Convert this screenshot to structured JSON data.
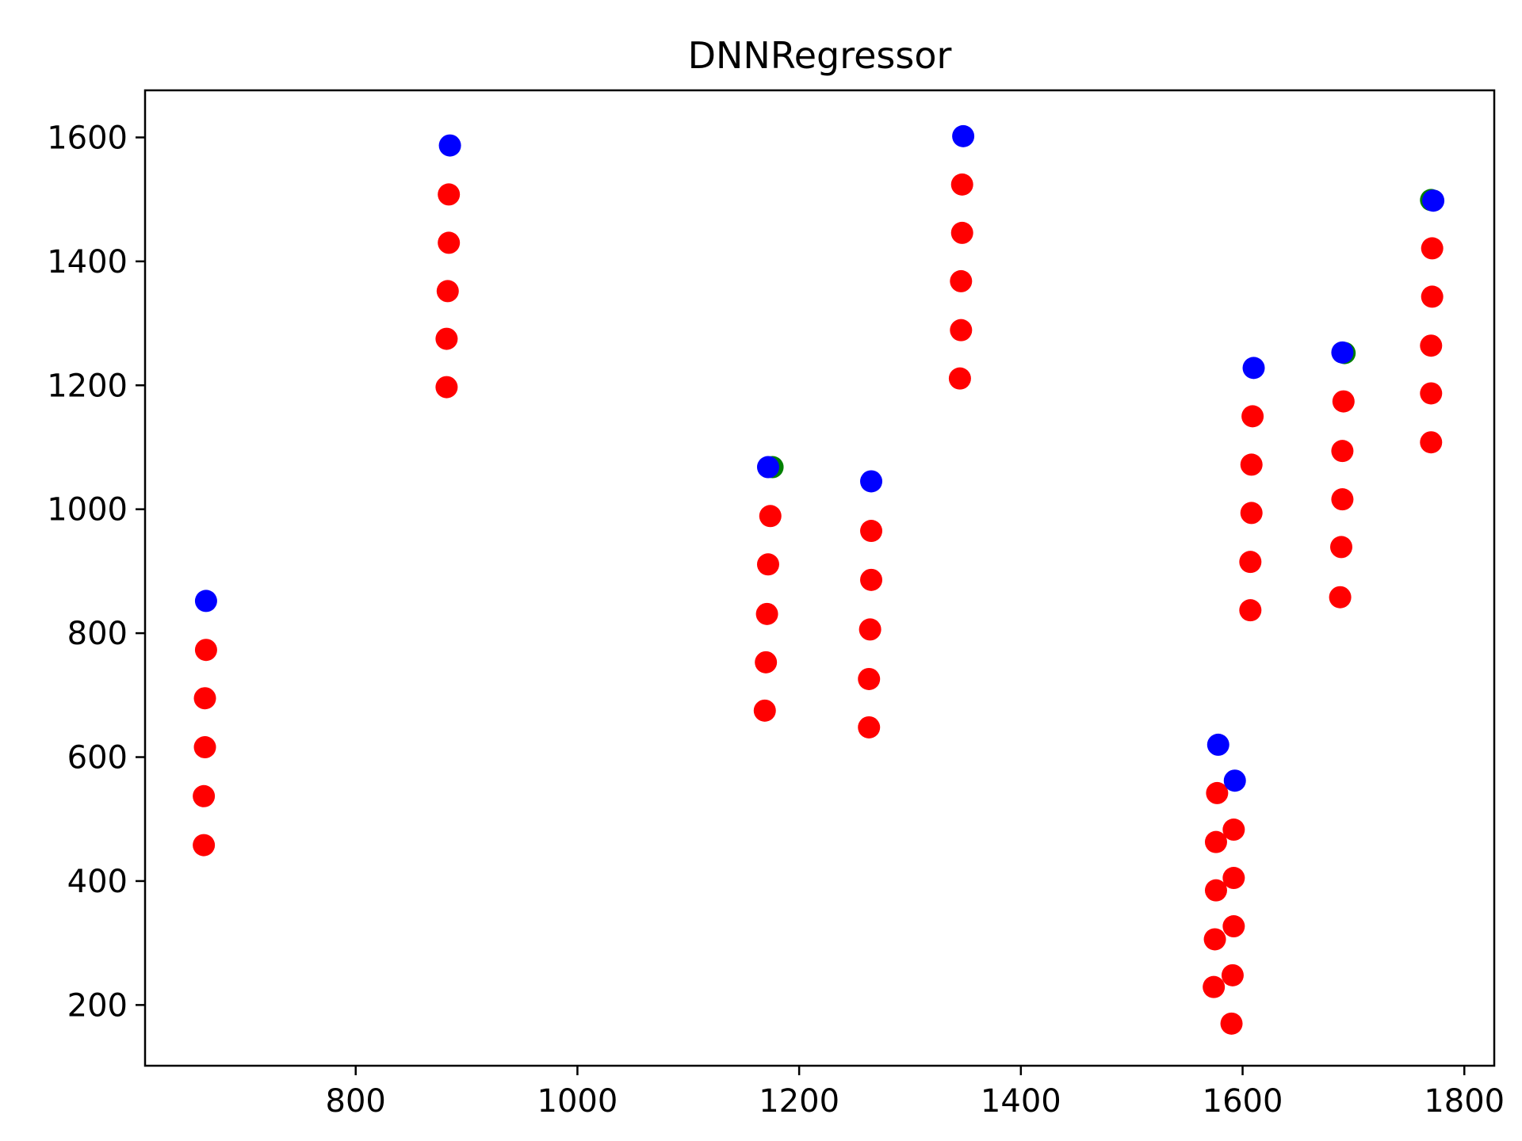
{
  "chart_data": {
    "type": "scatter",
    "title": "DNNRegressor",
    "xlabel": "",
    "ylabel": "",
    "xlim": [
      610,
      1827
    ],
    "ylim": [
      102,
      1676
    ],
    "xticks": [
      800,
      1000,
      1200,
      1400,
      1600,
      1800
    ],
    "yticks": [
      200,
      400,
      600,
      800,
      1000,
      1200,
      1400,
      1600
    ],
    "grid": false,
    "series": [
      {
        "color": "#ff0000",
        "points": [
          [
            665,
            773
          ],
          [
            664,
            695
          ],
          [
            664,
            616
          ],
          [
            663,
            537
          ],
          [
            663,
            458
          ],
          [
            884,
            1508
          ],
          [
            884,
            1430
          ],
          [
            883,
            1352
          ],
          [
            882,
            1275
          ],
          [
            882,
            1197
          ],
          [
            1174,
            989
          ],
          [
            1172,
            911
          ],
          [
            1171,
            831
          ],
          [
            1170,
            753
          ],
          [
            1169,
            675
          ],
          [
            1265,
            965
          ],
          [
            1265,
            886
          ],
          [
            1264,
            806
          ],
          [
            1263,
            726
          ],
          [
            1263,
            648
          ],
          [
            1347,
            1524
          ],
          [
            1347,
            1446
          ],
          [
            1346,
            1368
          ],
          [
            1346,
            1289
          ],
          [
            1345,
            1211
          ],
          [
            1577,
            542
          ],
          [
            1576,
            463
          ],
          [
            1576,
            385
          ],
          [
            1575,
            306
          ],
          [
            1574,
            229
          ],
          [
            1592,
            483
          ],
          [
            1592,
            405
          ],
          [
            1592,
            327
          ],
          [
            1591,
            248
          ],
          [
            1590,
            170
          ],
          [
            1609,
            1150
          ],
          [
            1608,
            1072
          ],
          [
            1608,
            994
          ],
          [
            1607,
            915
          ],
          [
            1607,
            837
          ],
          [
            1691,
            1174
          ],
          [
            1690,
            1094
          ],
          [
            1690,
            1016
          ],
          [
            1689,
            939
          ],
          [
            1688,
            858
          ],
          [
            1771,
            1421
          ],
          [
            1771,
            1343
          ],
          [
            1770,
            1264
          ],
          [
            1770,
            1187
          ],
          [
            1770,
            1108
          ]
        ]
      },
      {
        "color": "#008000",
        "points": [
          [
            1176,
            1068
          ],
          [
            1692,
            1252
          ],
          [
            1770,
            1499
          ]
        ]
      },
      {
        "color": "#0000ff",
        "points": [
          [
            665,
            852
          ],
          [
            885,
            1587
          ],
          [
            1172,
            1068
          ],
          [
            1265,
            1045
          ],
          [
            1348,
            1602
          ],
          [
            1578,
            620
          ],
          [
            1593,
            562
          ],
          [
            1610,
            1228
          ],
          [
            1690,
            1253
          ],
          [
            1772,
            1498
          ]
        ]
      }
    ]
  }
}
